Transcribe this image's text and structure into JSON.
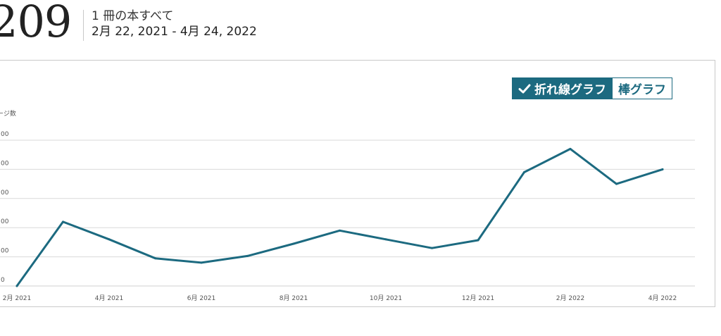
{
  "summary": {
    "count": "209",
    "scope": "1 冊の本すべて",
    "date_range": "2月 22, 2021 - 4月 24, 2022"
  },
  "view_toggle": {
    "line_label": "折れ線グラフ",
    "bar_label": "棒グラフ",
    "active": "line"
  },
  "colors": {
    "accent": "#1c6a80",
    "grid": "#d9d9d9"
  },
  "chart_data": {
    "type": "line",
    "ylabel": "ージ数",
    "y_ticks": [
      "0",
      "00",
      "00",
      "00",
      "00",
      "00"
    ],
    "x_ticks": [
      "2月 2021",
      "4月 2021",
      "6月 2021",
      "8月 2021",
      "10月 2021",
      "12月 2021",
      "2月 2022",
      "4月 2022"
    ],
    "grid": true,
    "series": [
      {
        "x": [
          "2月 2021",
          "3月 2021",
          "4月 2021",
          "5月 2021",
          "6月 2021",
          "7月 2021",
          "8月 2021",
          "9月 2021",
          "10月 2021",
          "11月 2021",
          "12月 2021",
          "1月 2022",
          "2月 2022",
          "3月 2022",
          "4月 2022"
        ],
        "values": [
          0,
          2.2,
          1.6,
          0.95,
          0.8,
          1.03,
          1.45,
          1.9,
          1.6,
          1.3,
          1.57,
          3.9,
          4.7,
          3.5,
          4.0
        ]
      }
    ],
    "ylim": [
      0,
      5
    ]
  }
}
